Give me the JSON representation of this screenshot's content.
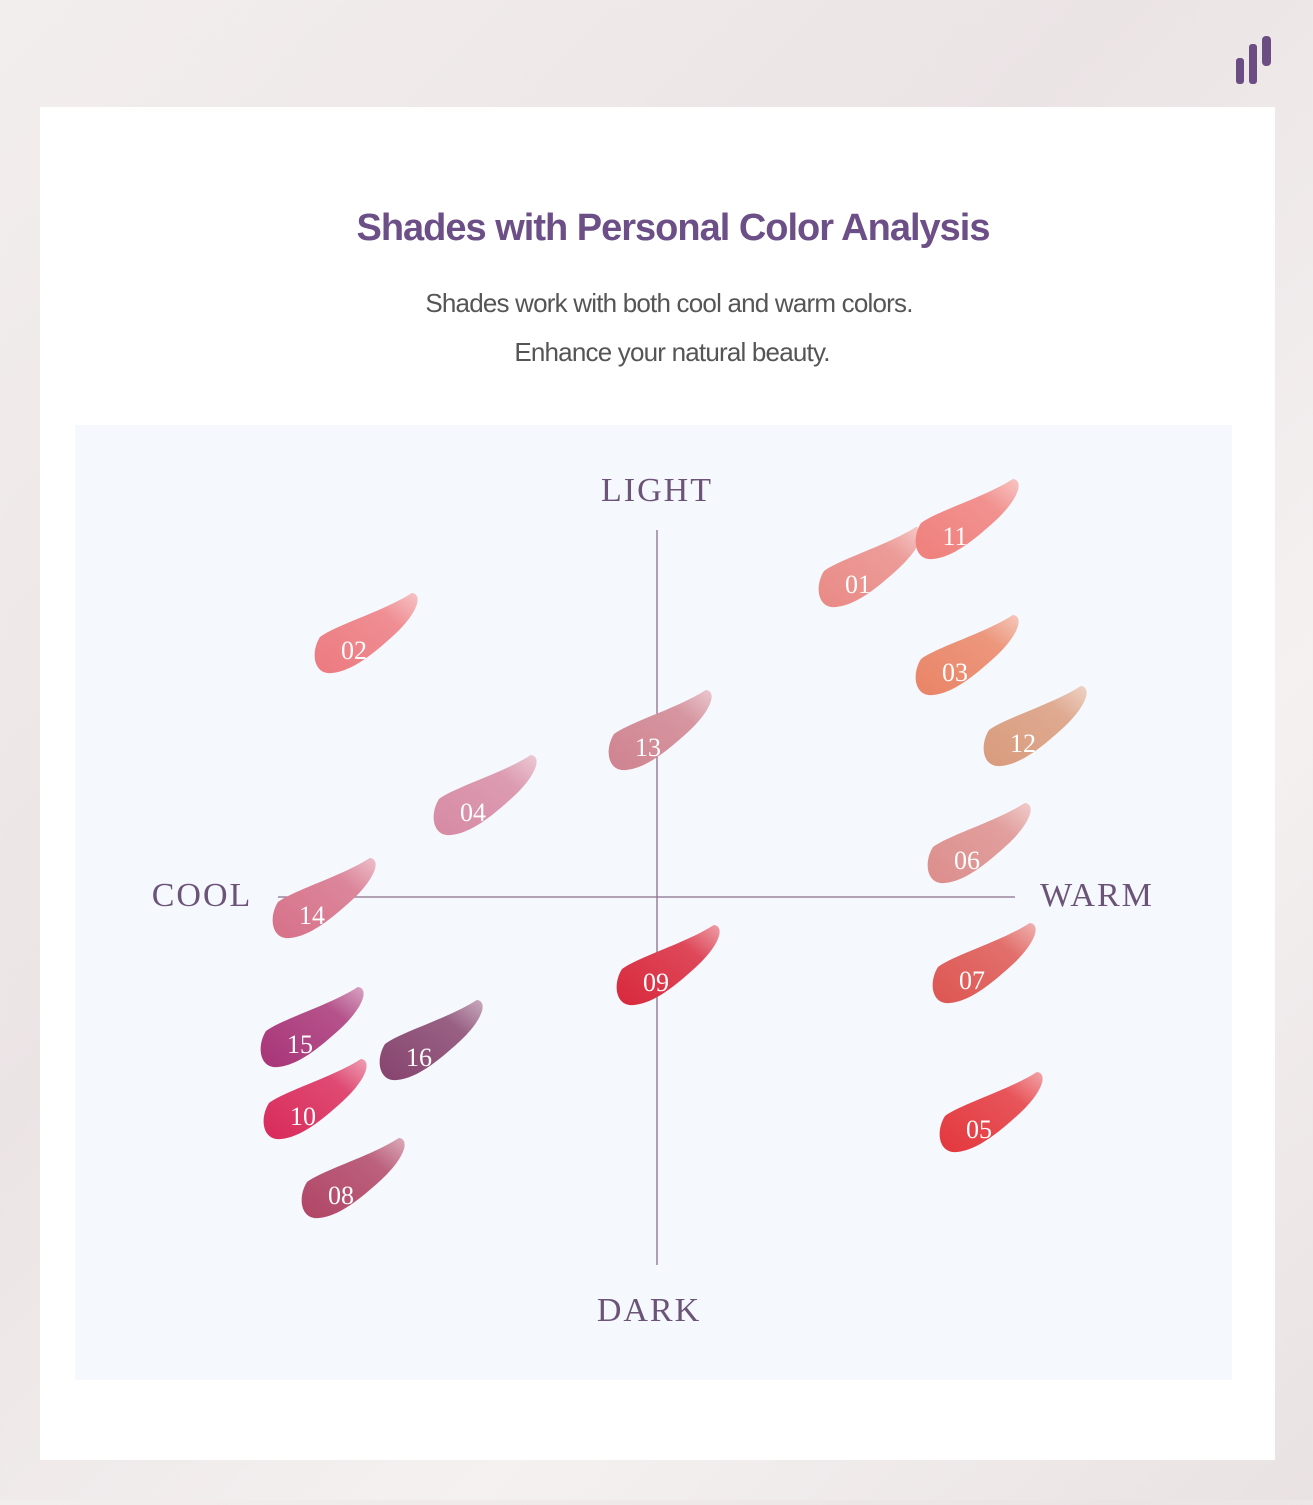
{
  "header": {
    "title": "Shades with Personal Color Analysis",
    "subtitle": [
      "Shades work with both cool and warm colors.",
      "Enhance your natural beauty."
    ]
  },
  "axes": {
    "top": "LIGHT",
    "bottom": "DARK",
    "left": "COOL",
    "right": "WARM"
  },
  "swatches": [
    "01",
    "11",
    "02",
    "03",
    "13",
    "12",
    "04",
    "06",
    "14",
    "09",
    "07",
    "15",
    "16",
    "10",
    "05",
    "08"
  ]
}
